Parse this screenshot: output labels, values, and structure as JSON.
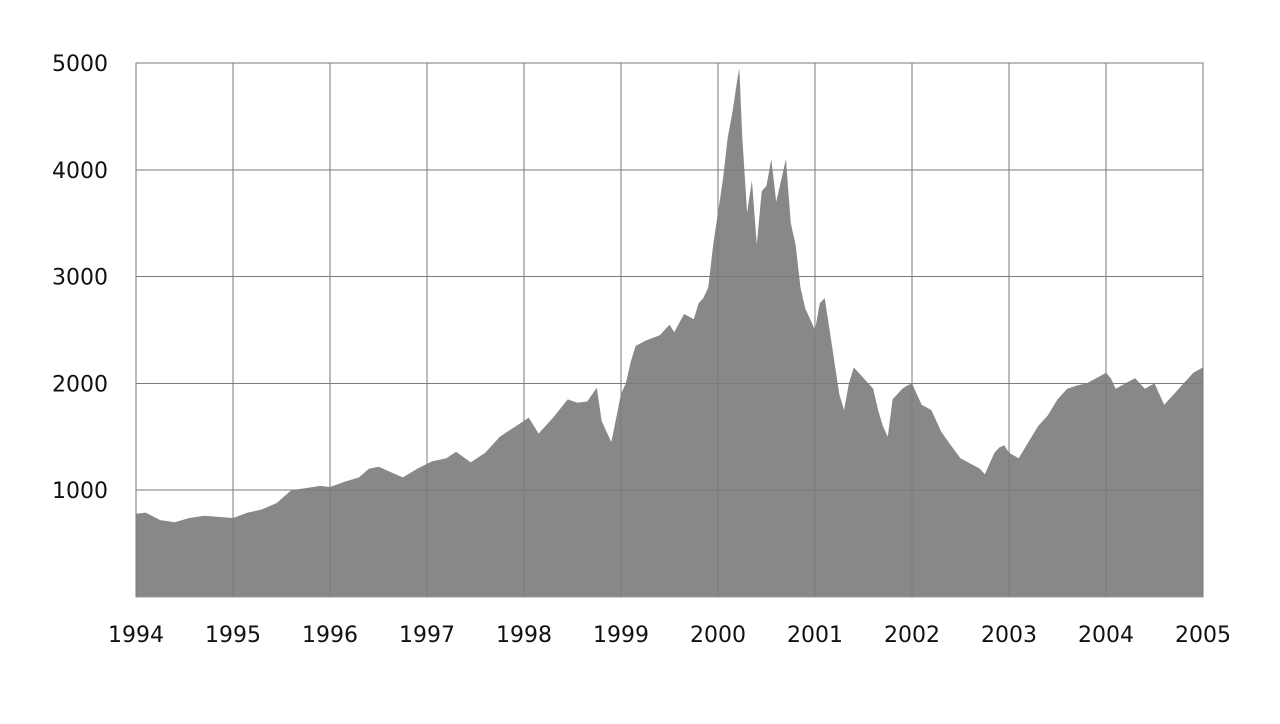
{
  "chart_data": {
    "type": "area",
    "title": "",
    "xlabel": "",
    "ylabel": "",
    "xlim": [
      1994,
      2005
    ],
    "ylim": [
      0,
      5000
    ],
    "x_ticks": [
      "1994",
      "1995",
      "1996",
      "1997",
      "1998",
      "1999",
      "2000",
      "2001",
      "2002",
      "2003",
      "2004",
      "2005"
    ],
    "y_ticks": [
      "1000",
      "2000",
      "3000",
      "4000",
      "5000"
    ],
    "grid": true,
    "legend": "none",
    "fill_color": "#888888",
    "series": [
      {
        "x": [
          1994.0,
          1994.1,
          1994.25,
          1994.4,
          1994.55,
          1994.7,
          1994.85,
          1995.0,
          1995.15,
          1995.3,
          1995.45,
          1995.6,
          1995.75,
          1995.9,
          1996.0,
          1996.15,
          1996.3,
          1996.4,
          1996.5,
          1996.6,
          1996.75,
          1996.9,
          1997.05,
          1997.2,
          1997.3,
          1997.45,
          1997.6,
          1997.75,
          1997.85,
          1997.95,
          1998.05,
          1998.15,
          1998.3,
          1998.45,
          1998.55,
          1998.65,
          1998.75,
          1998.8,
          1998.9,
          1999.0,
          1999.05,
          1999.1,
          1999.15,
          1999.25,
          1999.4,
          1999.5,
          1999.55,
          1999.65,
          1999.75,
          1999.8,
          1999.85,
          1999.9,
          1999.95,
          2000.0,
          2000.05,
          2000.1,
          2000.15,
          2000.2,
          2000.22,
          2000.25,
          2000.3,
          2000.35,
          2000.4,
          2000.45,
          2000.5,
          2000.55,
          2000.6,
          2000.65,
          2000.7,
          2000.75,
          2000.8,
          2000.85,
          2000.9,
          2000.95,
          2001.0,
          2001.05,
          2001.1,
          2001.15,
          2001.2,
          2001.25,
          2001.3,
          2001.35,
          2001.4,
          2001.45,
          2001.5,
          2001.55,
          2001.6,
          2001.65,
          2001.7,
          2001.75,
          2001.8,
          2001.85,
          2001.9,
          2001.95,
          2002.0,
          2002.05,
          2002.1,
          2002.2,
          2002.3,
          2002.4,
          2002.5,
          2002.6,
          2002.7,
          2002.75,
          2002.8,
          2002.85,
          2002.9,
          2002.95,
          2003.0,
          2003.1,
          2003.2,
          2003.3,
          2003.4,
          2003.5,
          2003.6,
          2003.7,
          2003.8,
          2003.9,
          2004.0,
          2004.05,
          2004.1,
          2004.2,
          2004.3,
          2004.4,
          2004.5,
          2004.6,
          2004.7,
          2004.8,
          2004.9,
          2005.0
        ],
        "y": [
          780,
          790,
          720,
          700,
          740,
          760,
          750,
          740,
          790,
          820,
          880,
          1000,
          1020,
          1040,
          1030,
          1080,
          1120,
          1200,
          1220,
          1180,
          1120,
          1200,
          1270,
          1300,
          1360,
          1260,
          1350,
          1500,
          1560,
          1620,
          1680,
          1530,
          1680,
          1850,
          1820,
          1830,
          1960,
          1650,
          1450,
          1900,
          2000,
          2200,
          2350,
          2400,
          2450,
          2550,
          2480,
          2650,
          2600,
          2750,
          2800,
          2900,
          3300,
          3600,
          3900,
          4300,
          4550,
          4850,
          4950,
          4300,
          3600,
          3900,
          3300,
          3800,
          3850,
          4100,
          3700,
          3900,
          4100,
          3500,
          3300,
          2900,
          2700,
          2600,
          2500,
          2750,
          2800,
          2500,
          2200,
          1900,
          1750,
          2000,
          2150,
          2100,
          2050,
          2000,
          1950,
          1750,
          1600,
          1500,
          1850,
          1900,
          1950,
          1980,
          2000,
          1900,
          1800,
          1750,
          1550,
          1420,
          1300,
          1250,
          1200,
          1150,
          1250,
          1350,
          1400,
          1420,
          1350,
          1300,
          1450,
          1600,
          1700,
          1850,
          1950,
          1980,
          2000,
          2050,
          2100,
          2050,
          1950,
          2000,
          2050,
          1950,
          2000,
          1800,
          1900,
          2000,
          2100,
          2150
        ]
      }
    ]
  }
}
